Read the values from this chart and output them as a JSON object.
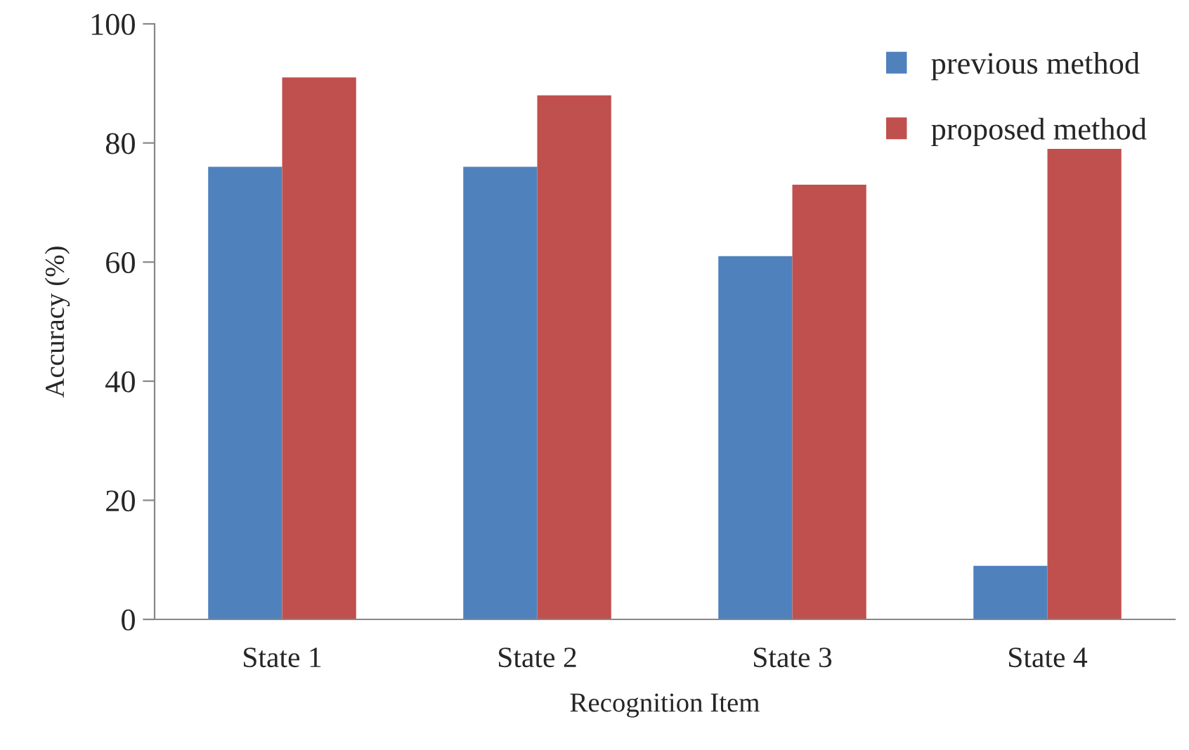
{
  "chart_data": {
    "type": "bar",
    "xlabel": "Recognition Item",
    "ylabel": "Accuracy (%)",
    "categories": [
      "State 1",
      "State 2",
      "State 3",
      "State 4"
    ],
    "series": [
      {
        "name": "previous method",
        "color": "#4f81bd",
        "values": [
          76,
          76,
          61,
          9
        ]
      },
      {
        "name": "proposed method",
        "color": "#c0504d",
        "values": [
          91,
          88,
          73,
          79
        ]
      }
    ],
    "ylim": [
      0,
      100
    ],
    "yticks": [
      0,
      20,
      40,
      60,
      80,
      100
    ],
    "grid": false,
    "legend": "top right"
  }
}
